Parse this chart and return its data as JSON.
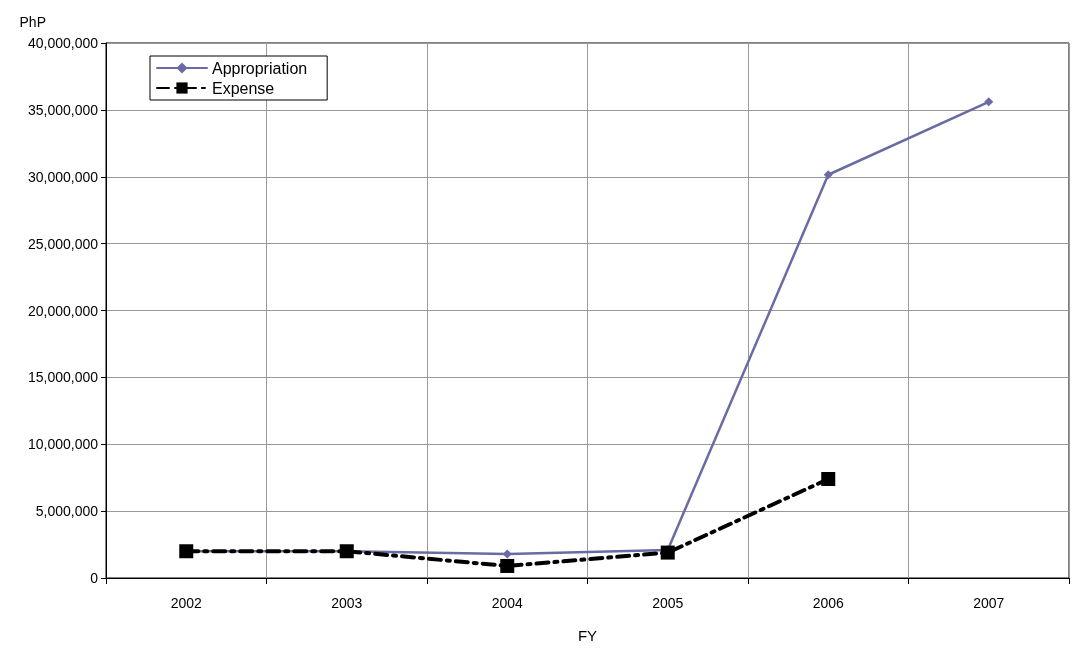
{
  "chart_data": {
    "type": "line",
    "xlabel": "FY",
    "ylabel": "PhP",
    "categories": [
      "2002",
      "2003",
      "2004",
      "2005",
      "2006",
      "2007"
    ],
    "series": [
      {
        "name": "Appropriation",
        "color": "#6b6ba3",
        "marker": "diamond",
        "line_style": "solid",
        "values": [
          2000000,
          2000000,
          1800000,
          2100000,
          30150000,
          35600000
        ]
      },
      {
        "name": "Expense",
        "color": "#000000",
        "marker": "square",
        "line_style": "dashed",
        "values": [
          2000000,
          2000000,
          900000,
          1900000,
          7400000,
          null
        ]
      }
    ],
    "ylim": [
      0,
      40000000
    ],
    "yticks": [
      0,
      {
        "value": 5000000,
        "label": "5,000,000"
      },
      {
        "value": 10000000,
        "label": "10,000,000"
      },
      {
        "value": 15000000,
        "label": "15,000,000"
      },
      {
        "value": 20000000,
        "label": "20,000,000"
      },
      {
        "value": 25000000,
        "label": "25,000,000"
      },
      {
        "value": 30000000,
        "label": "30,000,000"
      },
      {
        "value": 35000000,
        "label": "35,000,000"
      },
      {
        "value": 40000000,
        "label": "40,000,000"
      }
    ],
    "grid": true,
    "legend": "top left"
  }
}
